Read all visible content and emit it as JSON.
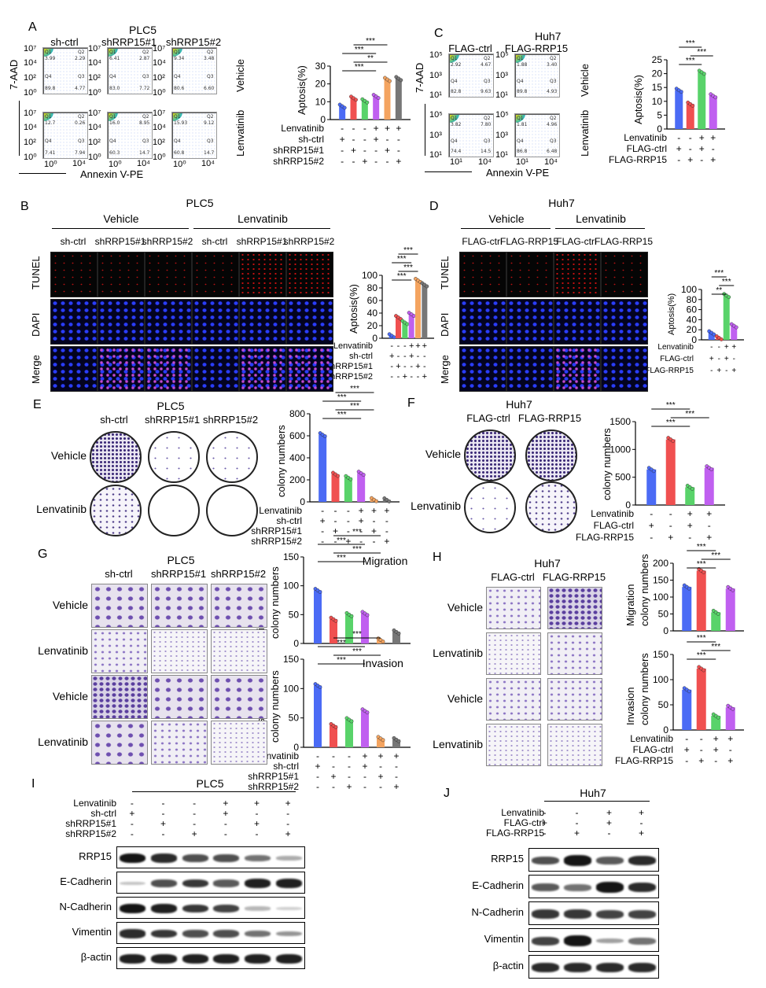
{
  "panels": {
    "A": {
      "letter": "A",
      "title": "PLC5",
      "columns": [
        "sh-ctrl",
        "shRRP15#1",
        "shRRP15#2"
      ],
      "rows": [
        "Vehicle",
        "Lenvatinib"
      ],
      "yaxis_label": "7-AAD",
      "xaxis_label": "Annexin V-PE",
      "ytick_labels": [
        "10⁷",
        "10⁴",
        "10²",
        "10⁰"
      ],
      "xtick_labels": [
        "10⁰",
        "10⁴"
      ],
      "quadrants": [
        {
          "q1": "Q1",
          "q2": "Q2",
          "q3": "Q3",
          "q4": "Q4",
          "v1": "3.99",
          "v2": "2.29",
          "v3": "4.77",
          "v4": "89.8"
        },
        {
          "q1": "Q1",
          "q2": "Q2",
          "q3": "Q3",
          "q4": "Q4",
          "v1": "6.41",
          "v2": "2.87",
          "v3": "7.72",
          "v4": "83.0"
        },
        {
          "q1": "Q1",
          "q2": "Q2",
          "q3": "Q3",
          "q4": "Q4",
          "v1": "9.34",
          "v2": "3.48",
          "v3": "6.60",
          "v4": "80.6"
        },
        {
          "q1": "Q1",
          "q2": "Q2",
          "q3": "Q3",
          "q4": "Q4",
          "v1": "12.7",
          "v2": "0.26",
          "v3": "7.94",
          "v4": "7.41"
        },
        {
          "q1": "Q1",
          "q2": "Q2",
          "q3": "Q3",
          "q4": "Q4",
          "v1": "16.0",
          "v2": "8.95",
          "v3": "14.7",
          "v4": "60.3"
        },
        {
          "q1": "Q1",
          "q2": "Q2",
          "q3": "Q3",
          "q4": "Q4",
          "v1": "15.93",
          "v2": "9.12",
          "v3": "14.7",
          "v4": "60.8"
        }
      ]
    },
    "C": {
      "letter": "C",
      "title": "Huh7",
      "columns": [
        "FLAG-ctrl",
        "FLAG-RRP15"
      ],
      "rows": [
        "Vehicle",
        "Lenvatinib"
      ],
      "yaxis_label": "7-AAD",
      "xaxis_label": "Annexin V-PE",
      "ytick_labels": [
        "10⁵",
        "10³",
        "10¹"
      ],
      "xtick_labels": [
        "10¹",
        "10⁴"
      ],
      "quadrants": [
        {
          "q1": "Q1",
          "q2": "Q2",
          "q3": "Q3",
          "q4": "Q4",
          "v1": "2.92",
          "v2": "4.67",
          "v3": "9.63",
          "v4": "82.8"
        },
        {
          "q1": "Q1",
          "q2": "Q2",
          "q3": "Q3",
          "q4": "Q4",
          "v1": "1.88",
          "v2": "3.40",
          "v3": "4.93",
          "v4": "89.8"
        },
        {
          "q1": "Q1",
          "q2": "Q2",
          "q3": "Q3",
          "q4": "Q4",
          "v1": "3.82",
          "v2": "7.80",
          "v3": "14.5",
          "v4": "74.4"
        },
        {
          "q1": "Q1",
          "q2": "Q2",
          "q3": "Q3",
          "q4": "Q4",
          "v1": "1.81",
          "v2": "4.96",
          "v3": "6.48",
          "v4": "86.8"
        }
      ]
    },
    "B": {
      "letter": "B",
      "title": "PLC5",
      "groups": [
        "Vehicle",
        "Lenvatinib"
      ],
      "columns": [
        "sh-ctrl",
        "shRRP15#1",
        "shRRP15#2",
        "sh-ctrl",
        "shRRP15#1",
        "shRRP15#2"
      ],
      "rows": [
        "TUNEL",
        "DAPI",
        "Merge"
      ]
    },
    "D": {
      "letter": "D",
      "title": "Huh7",
      "groups": [
        "Vehicle",
        "Lenvatinib"
      ],
      "columns": [
        "FLAG-ctrl",
        "FLAG-RRP15",
        "FLAG-ctrl",
        "FLAG-RRP15"
      ],
      "rows": [
        "TUNEL",
        "DAPI",
        "Merge"
      ]
    },
    "E": {
      "letter": "E",
      "title": "PLC5",
      "columns": [
        "sh-ctrl",
        "shRRP15#1",
        "shRRP15#2"
      ],
      "rows": [
        "Vehicle",
        "Lenvatinib"
      ]
    },
    "F": {
      "letter": "F",
      "title": "Huh7",
      "columns": [
        "FLAG-ctrl",
        "FLAG-RRP15"
      ],
      "rows": [
        "Vehicle",
        "Lenvatinib"
      ]
    },
    "G": {
      "letter": "G",
      "title": "PLC5",
      "columns": [
        "sh-ctrl",
        "shRRP15#1",
        "shRRP15#2"
      ],
      "rows": [
        "Vehicle",
        "Lenvatinib",
        "Vehicle",
        "Lenvatinib"
      ]
    },
    "H": {
      "letter": "H",
      "title": "Huh7",
      "columns": [
        "FLAG-ctrl",
        "FLAG-RRP15"
      ],
      "rows": [
        "Vehicle",
        "Lenvatinib",
        "Vehicle",
        "Lenvatinib"
      ]
    },
    "I": {
      "letter": "I",
      "title": "PLC5",
      "condition_rows": [
        {
          "name": "Lenvatinib",
          "signs": [
            "-",
            "-",
            "-",
            "+",
            "+",
            "+"
          ]
        },
        {
          "name": "sh-ctrl",
          "signs": [
            "+",
            "-",
            "-",
            "+",
            "-",
            "-"
          ]
        },
        {
          "name": "shRRP15#1",
          "signs": [
            "-",
            "+",
            "-",
            "-",
            "+",
            "-"
          ]
        },
        {
          "name": "shRRP15#2",
          "signs": [
            "-",
            "-",
            "+",
            "-",
            "-",
            "+"
          ]
        }
      ],
      "proteins": [
        "RRP15",
        "E-Cadherin",
        "N-Cadherin",
        "Vimentin",
        "β-actin"
      ],
      "band_intensity": [
        [
          1.0,
          0.9,
          0.75,
          0.75,
          0.6,
          0.35
        ],
        [
          0.25,
          0.75,
          0.85,
          0.7,
          0.95,
          0.95
        ],
        [
          1.0,
          0.95,
          0.85,
          0.8,
          0.3,
          0.2
        ],
        [
          0.9,
          0.85,
          0.75,
          0.75,
          0.6,
          0.45
        ],
        [
          0.95,
          0.95,
          0.95,
          0.95,
          0.95,
          0.95
        ]
      ]
    },
    "J": {
      "letter": "J",
      "title": "Huh7",
      "condition_rows": [
        {
          "name": "Lenvatinib",
          "signs": [
            "-",
            "-",
            "+",
            "+"
          ]
        },
        {
          "name": "FLAG-ctrl",
          "signs": [
            "+",
            "-",
            "+",
            "-"
          ]
        },
        {
          "name": "FLAG-RRP15",
          "signs": [
            "-",
            "+",
            "-",
            "+"
          ]
        }
      ],
      "proteins": [
        "RRP15",
        "E-Cadherin",
        "N-Cadherin",
        "Vimentin",
        "β-actin"
      ],
      "band_intensity": [
        [
          0.75,
          1.0,
          0.7,
          0.9
        ],
        [
          0.7,
          0.6,
          1.0,
          0.9
        ],
        [
          0.85,
          0.85,
          0.8,
          0.8
        ],
        [
          0.8,
          1.0,
          0.4,
          0.6
        ],
        [
          0.9,
          0.9,
          0.9,
          0.9
        ]
      ]
    }
  },
  "chart_data": [
    {
      "id": "A-bar",
      "type": "bar",
      "ylabel": "Aptosis(%)",
      "ylim": [
        0,
        30
      ],
      "yticks": [
        "0",
        "10",
        "20",
        "30"
      ],
      "values": [
        7.5,
        12,
        10.5,
        13,
        22.5,
        23
      ],
      "colors": [
        "#4b6bf5",
        "#f05050",
        "#59d36a",
        "#c060f0",
        "#f4a460",
        "#777777"
      ],
      "condition_rows": [
        {
          "name": "Lenvatinib",
          "signs": [
            "-",
            "-",
            "-",
            "+",
            "+",
            "+"
          ]
        },
        {
          "name": "sh-ctrl",
          "signs": [
            "+",
            "-",
            "-",
            "+",
            "-",
            "-"
          ]
        },
        {
          "name": "shRRP15#1",
          "signs": [
            "-",
            "+",
            "-",
            "-",
            "+",
            "-"
          ]
        },
        {
          "name": "shRRP15#2",
          "signs": [
            "-",
            "-",
            "+",
            "-",
            "-",
            "+"
          ]
        }
      ],
      "significance": [
        "***",
        "**",
        "***",
        "***"
      ]
    },
    {
      "id": "C-bar",
      "type": "bar",
      "ylabel": "Aptosis(%)",
      "ylim": [
        0,
        25
      ],
      "yticks": [
        "0",
        "5",
        "10",
        "15",
        "20",
        "25"
      ],
      "values": [
        14,
        9,
        20.5,
        12
      ],
      "colors": [
        "#4b6bf5",
        "#f05050",
        "#59d36a",
        "#c060f0"
      ],
      "condition_rows": [
        {
          "name": "Lenvatinib",
          "signs": [
            "-",
            "-",
            "+",
            "+"
          ]
        },
        {
          "name": "FLAG-ctrl",
          "signs": [
            "+",
            "-",
            "+",
            "-"
          ]
        },
        {
          "name": "FLAG-RRP15",
          "signs": [
            "-",
            "+",
            "-",
            "+"
          ]
        }
      ],
      "significance": [
        "***",
        "***",
        "***"
      ]
    },
    {
      "id": "B-bar",
      "type": "bar",
      "ylabel": "Aptosis(%)",
      "ylim": [
        0,
        100
      ],
      "yticks": [
        "0",
        "20",
        "40",
        "60",
        "80",
        "100"
      ],
      "values": [
        4,
        33,
        25,
        38,
        92,
        85
      ],
      "colors": [
        "#4b6bf5",
        "#f05050",
        "#59d36a",
        "#c060f0",
        "#f4a460",
        "#777777"
      ],
      "condition_rows": [
        {
          "name": "Lenvatinib",
          "signs": [
            "-",
            "-",
            "-",
            "+",
            "+",
            "+"
          ]
        },
        {
          "name": "sh-ctrl",
          "signs": [
            "+",
            "-",
            "-",
            "+",
            "-",
            "-"
          ]
        },
        {
          "name": "shRRP15#1",
          "signs": [
            "-",
            "+",
            "-",
            "-",
            "+",
            "-"
          ]
        },
        {
          "name": "shRRP15#2",
          "signs": [
            "-",
            "-",
            "+",
            "-",
            "-",
            "+"
          ]
        }
      ],
      "significance": [
        "***",
        "***",
        "***",
        "***"
      ]
    },
    {
      "id": "D-bar",
      "type": "bar",
      "ylabel": "Aptosis(%)",
      "ylim": [
        0,
        100
      ],
      "yticks": [
        "0",
        "20",
        "40",
        "60",
        "80",
        "100"
      ],
      "values": [
        14,
        4,
        88,
        28
      ],
      "colors": [
        "#4b6bf5",
        "#f05050",
        "#59d36a",
        "#c060f0"
      ],
      "condition_rows": [
        {
          "name": "Lenvatinib",
          "signs": [
            "-",
            "-",
            "+",
            "+"
          ]
        },
        {
          "name": "FLAG-ctrl",
          "signs": [
            "+",
            "-",
            "+",
            "-"
          ]
        },
        {
          "name": "FLAG-RRP15",
          "signs": [
            "-",
            "+",
            "-",
            "+"
          ]
        }
      ],
      "significance": [
        "**",
        "***",
        "***"
      ]
    },
    {
      "id": "E-bar",
      "type": "bar",
      "ylabel": "colony numbers",
      "ylim": [
        0,
        800
      ],
      "yticks": [
        "0",
        "200",
        "400",
        "600",
        "800"
      ],
      "values": [
        610,
        250,
        220,
        260,
        20,
        18
      ],
      "colors": [
        "#4b6bf5",
        "#f05050",
        "#59d36a",
        "#c060f0",
        "#f4a460",
        "#777777"
      ],
      "condition_rows": [
        {
          "name": "Lenvatinib",
          "signs": [
            "-",
            "-",
            "-",
            "+",
            "+",
            "+"
          ]
        },
        {
          "name": "sh-ctrl",
          "signs": [
            "+",
            "-",
            "-",
            "+",
            "-",
            "-"
          ]
        },
        {
          "name": "shRRP15#1",
          "signs": [
            "-",
            "+",
            "-",
            "-",
            "+",
            "-"
          ]
        },
        {
          "name": "shRRP15#2",
          "signs": [
            "-",
            "-",
            "+",
            "-",
            "-",
            "+"
          ]
        }
      ],
      "significance": [
        "***",
        "***",
        "***",
        "***"
      ]
    },
    {
      "id": "F-bar",
      "type": "bar",
      "ylabel": "colony numbers",
      "ylim": [
        0,
        1500
      ],
      "yticks": [
        "0",
        "500",
        "1000",
        "1500"
      ],
      "values": [
        640,
        1180,
        320,
        670
      ],
      "colors": [
        "#4b6bf5",
        "#f05050",
        "#59d36a",
        "#c060f0"
      ],
      "condition_rows": [
        {
          "name": "Lenvatinib",
          "signs": [
            "-",
            "-",
            "+",
            "+"
          ]
        },
        {
          "name": "FLAG-ctrl",
          "signs": [
            "+",
            "-",
            "+",
            "-"
          ]
        },
        {
          "name": "FLAG-RRP15",
          "signs": [
            "-",
            "+",
            "-",
            "+"
          ]
        }
      ],
      "significance": [
        "***",
        "***",
        "***"
      ]
    },
    {
      "id": "G-mig",
      "type": "bar",
      "title": "Migration",
      "ylabel": "colony numbers",
      "yside": "Migration",
      "ylim": [
        0,
        150
      ],
      "yticks": [
        "0",
        "50",
        "100",
        "150"
      ],
      "values": [
        92,
        42,
        50,
        52,
        6,
        20
      ],
      "colors": [
        "#4b6bf5",
        "#f05050",
        "#59d36a",
        "#c060f0",
        "#f4a460",
        "#777777"
      ],
      "significance": [
        "***",
        "***",
        "***",
        "***"
      ]
    },
    {
      "id": "G-inv",
      "type": "bar",
      "title": "Invasion",
      "ylabel": "colony numbers",
      "yside": "Invasion",
      "ylim": [
        0,
        150
      ],
      "yticks": [
        "0",
        "50",
        "100",
        "150"
      ],
      "values": [
        105,
        37,
        47,
        62,
        15,
        13
      ],
      "colors": [
        "#4b6bf5",
        "#f05050",
        "#59d36a",
        "#c060f0",
        "#f4a460",
        "#777777"
      ],
      "condition_rows": [
        {
          "name": "Lenvatinib",
          "signs": [
            "-",
            "-",
            "-",
            "+",
            "+",
            "+"
          ]
        },
        {
          "name": "sh-ctrl",
          "signs": [
            "+",
            "-",
            "-",
            "+",
            "-",
            "-"
          ]
        },
        {
          "name": "shRRP15#1",
          "signs": [
            "-",
            "+",
            "-",
            "-",
            "+",
            "-"
          ]
        },
        {
          "name": "shRRP15#2",
          "signs": [
            "-",
            "-",
            "+",
            "-",
            "-",
            "+"
          ]
        }
      ],
      "significance": [
        "***",
        "***",
        "***",
        "***"
      ]
    },
    {
      "id": "H-mig",
      "type": "bar",
      "ylabel": "colony numbers",
      "yside": "Migration",
      "ylim": [
        0,
        200
      ],
      "yticks": [
        "0",
        "50",
        "100",
        "150",
        "200"
      ],
      "values": [
        130,
        178,
        55,
        125
      ],
      "colors": [
        "#4b6bf5",
        "#f05050",
        "#59d36a",
        "#c060f0"
      ],
      "significance": [
        "***",
        "***",
        "***"
      ]
    },
    {
      "id": "H-inv",
      "type": "bar",
      "ylabel": "colony numbers",
      "yside": "Invasion",
      "ylim": [
        0,
        150
      ],
      "yticks": [
        "0",
        "50",
        "100",
        "150"
      ],
      "values": [
        80,
        122,
        28,
        45
      ],
      "colors": [
        "#4b6bf5",
        "#f05050",
        "#59d36a",
        "#c060f0"
      ],
      "condition_rows": [
        {
          "name": "Lenvatinib",
          "signs": [
            "-",
            "-",
            "+",
            "+"
          ]
        },
        {
          "name": "FLAG-ctrl",
          "signs": [
            "+",
            "-",
            "+",
            "-"
          ]
        },
        {
          "name": "FLAG-RRP15",
          "signs": [
            "-",
            "+",
            "-",
            "+"
          ]
        }
      ],
      "significance": [
        "***",
        "***",
        "***"
      ]
    }
  ]
}
